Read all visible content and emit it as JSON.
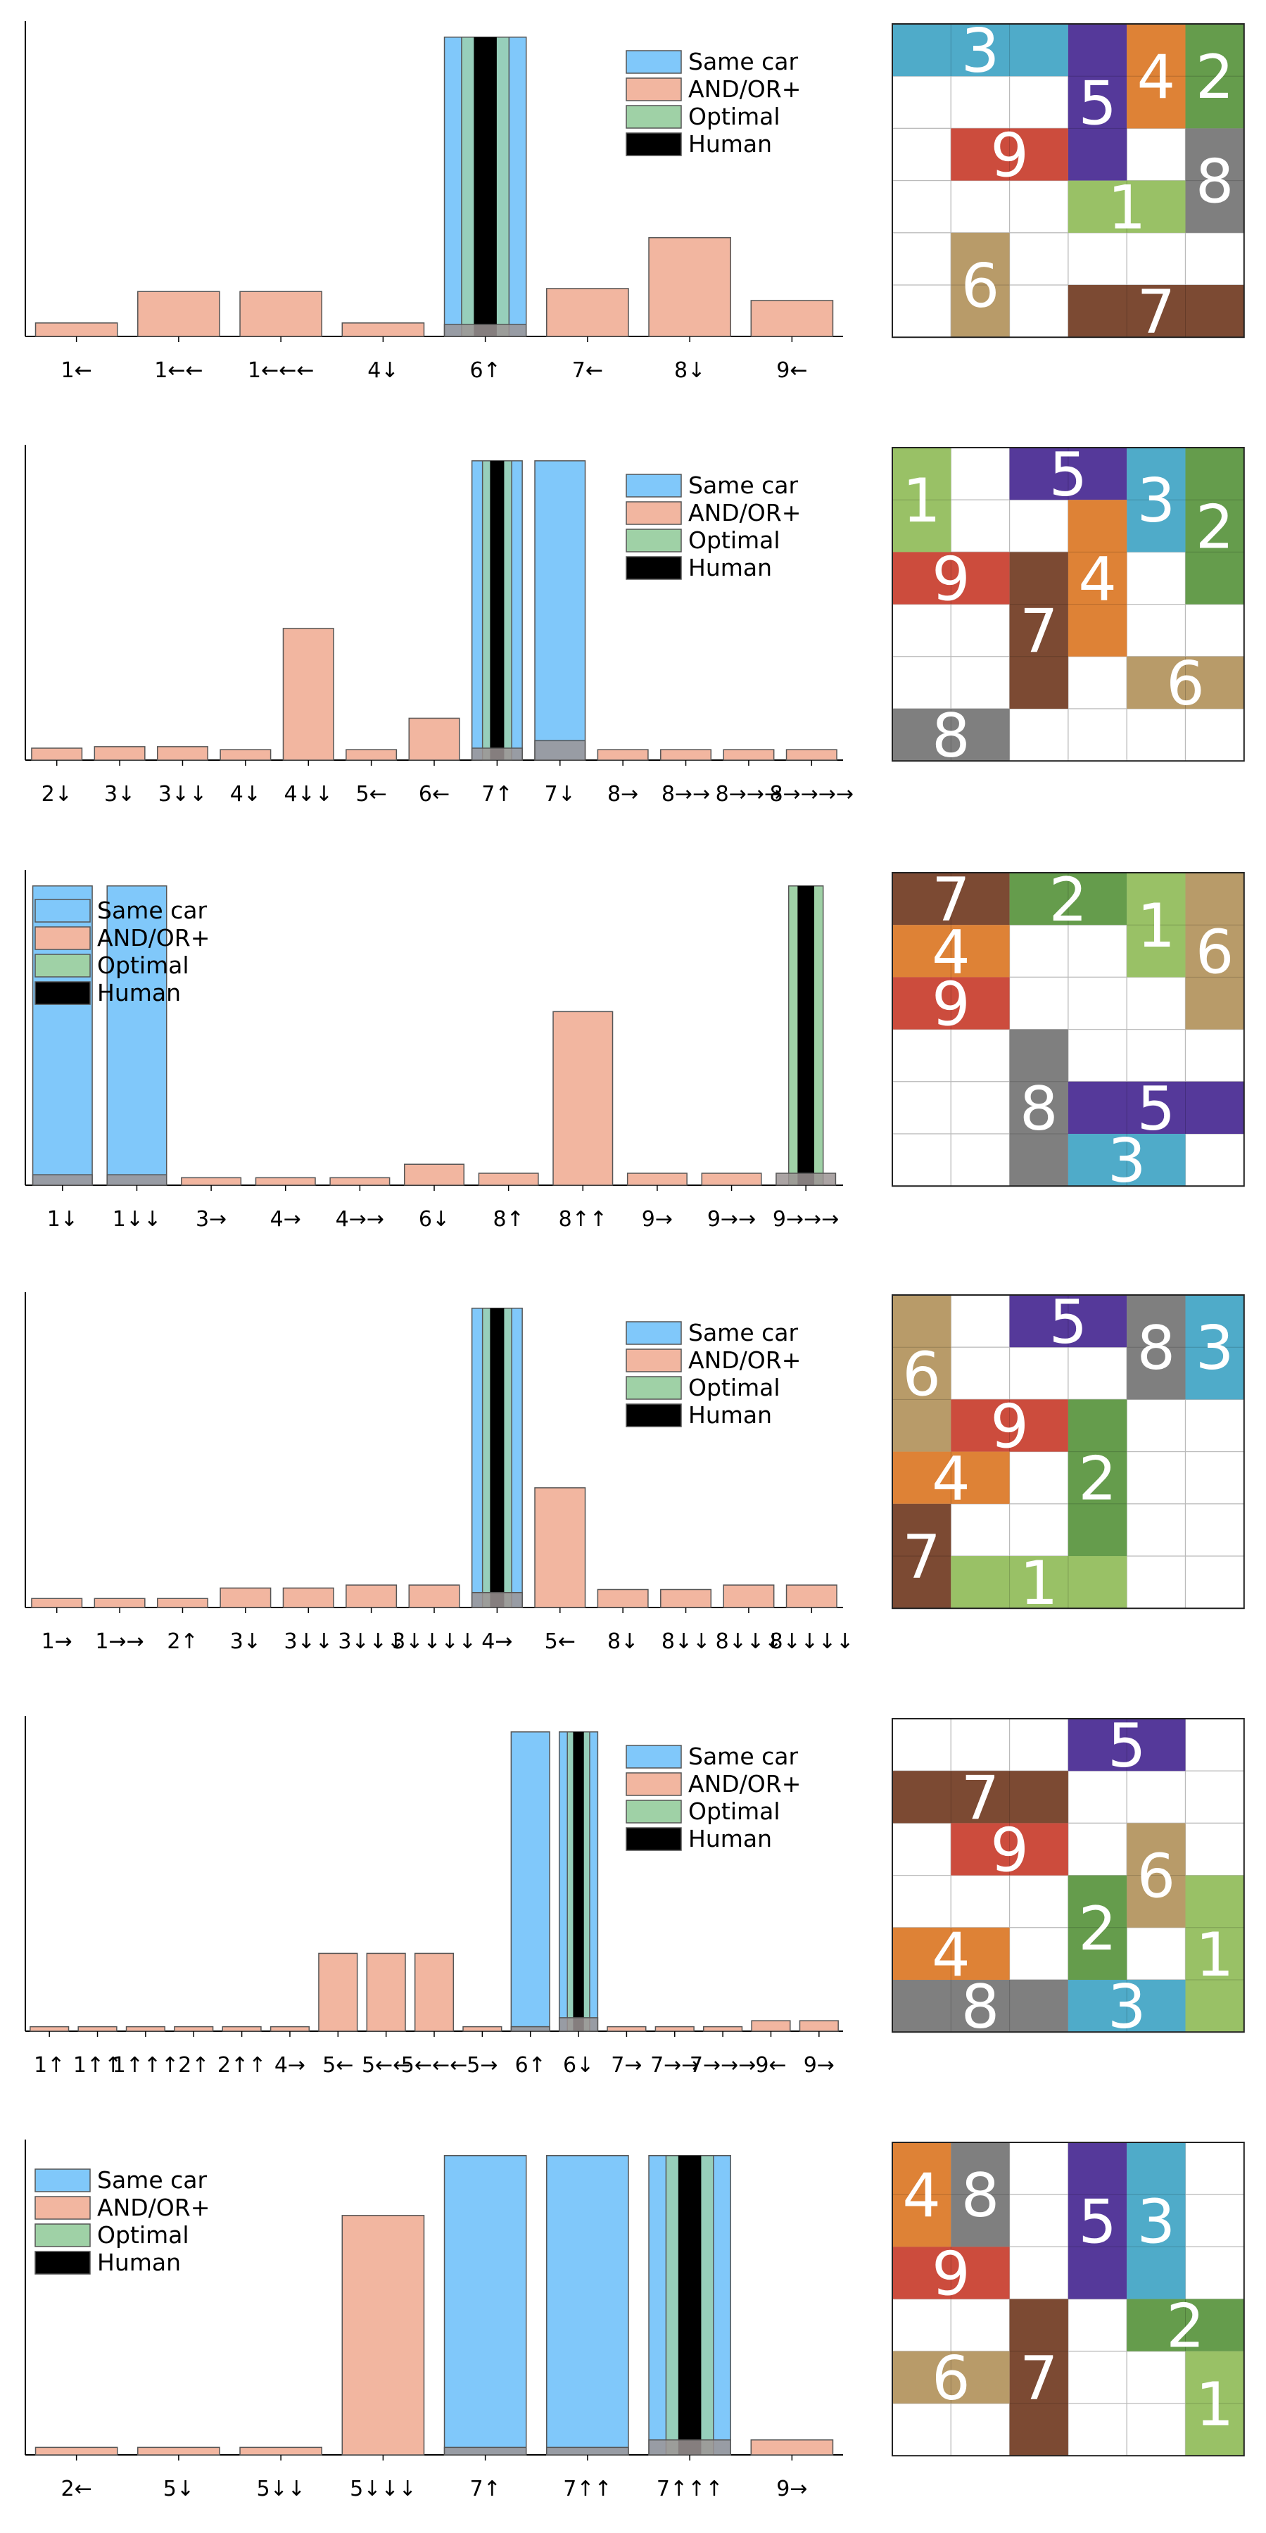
{
  "colors": {
    "same_car": "#80c8fa",
    "andor": "#f2b6a0",
    "optimal": "#9fd1a6",
    "human": "#000000",
    "overlap": "#9c9494",
    "grid_line": "#bbbbbb",
    "frame": "#222222"
  },
  "legend_labels": [
    "Same car",
    "AND/OR+",
    "Optimal",
    "Human"
  ],
  "chart_data": [
    {
      "type": "bar",
      "legend_position": "upper-right",
      "categories": [
        "1←",
        "1←←",
        "1←←←",
        "4↓",
        "6↑",
        "7←",
        "8↓",
        "9←"
      ],
      "series": [
        {
          "name": "Same car",
          "values": [
            0,
            0,
            0,
            0,
            1.0,
            0,
            0,
            0
          ]
        },
        {
          "name": "AND/OR+",
          "values": [
            0.045,
            0.15,
            0.15,
            0.045,
            0.04,
            0.16,
            0.33,
            0.12
          ]
        },
        {
          "name": "Optimal",
          "values": [
            0,
            0,
            0,
            0,
            1.0,
            0,
            0,
            0
          ]
        },
        {
          "name": "Human",
          "values": [
            0,
            0,
            0,
            0,
            1.0,
            0,
            0,
            0
          ]
        }
      ],
      "ylim": [
        0,
        1.03
      ],
      "puzzle": {
        "cars": [
          {
            "label": "3",
            "color": "#4fabc9",
            "row": 0,
            "col": 0,
            "w": 3,
            "h": 1
          },
          {
            "label": "5",
            "color": "#55399a",
            "row": 0,
            "col": 3,
            "w": 1,
            "h": 3
          },
          {
            "label": "4",
            "color": "#de8236",
            "row": 0,
            "col": 4,
            "w": 1,
            "h": 2
          },
          {
            "label": "2",
            "color": "#659c4c",
            "row": 0,
            "col": 5,
            "w": 1,
            "h": 2
          },
          {
            "label": "9",
            "color": "#cc4c3d",
            "row": 2,
            "col": 1,
            "w": 2,
            "h": 1
          },
          {
            "label": "8",
            "color": "#7f7f7f",
            "row": 2,
            "col": 5,
            "w": 1,
            "h": 2
          },
          {
            "label": "1",
            "color": "#99c166",
            "row": 3,
            "col": 3,
            "w": 2,
            "h": 1
          },
          {
            "label": "6",
            "color": "#b89b69",
            "row": 4,
            "col": 1,
            "w": 1,
            "h": 2
          },
          {
            "label": "7",
            "color": "#7c4a33",
            "row": 5,
            "col": 3,
            "w": 3,
            "h": 1
          }
        ]
      }
    },
    {
      "type": "bar",
      "legend_position": "upper-right",
      "categories": [
        "2↓",
        "3↓",
        "3↓↓",
        "4↓",
        "4↓↓",
        "5←",
        "6←",
        "7↑",
        "7↓",
        "8→",
        "8→→",
        "8→→→",
        "8→→→→"
      ],
      "series": [
        {
          "name": "Same car",
          "values": [
            0,
            0,
            0,
            0,
            0,
            0,
            0,
            1.0,
            1.0,
            0,
            0,
            0,
            0
          ]
        },
        {
          "name": "AND/OR+",
          "values": [
            0.04,
            0.045,
            0.045,
            0.035,
            0.44,
            0.035,
            0.14,
            0.04,
            0.065,
            0.035,
            0.035,
            0.035,
            0.035
          ]
        },
        {
          "name": "Optimal",
          "values": [
            0,
            0,
            0,
            0,
            0,
            0,
            0,
            1.0,
            0,
            0,
            0,
            0,
            0
          ]
        },
        {
          "name": "Human",
          "values": [
            0,
            0,
            0,
            0,
            0,
            0,
            0,
            1.0,
            0,
            0,
            0,
            0,
            0
          ]
        }
      ],
      "ylim": [
        0,
        1.03
      ],
      "puzzle": {
        "cars": [
          {
            "label": "1",
            "color": "#99c166",
            "row": 0,
            "col": 0,
            "w": 1,
            "h": 2
          },
          {
            "label": "5",
            "color": "#55399a",
            "row": 0,
            "col": 2,
            "w": 2,
            "h": 1
          },
          {
            "label": "3",
            "color": "#4fabc9",
            "row": 0,
            "col": 4,
            "w": 1,
            "h": 2
          },
          {
            "label": "2",
            "color": "#659c4c",
            "row": 0,
            "col": 5,
            "w": 1,
            "h": 3
          },
          {
            "label": "4",
            "color": "#de8236",
            "row": 1,
            "col": 3,
            "w": 1,
            "h": 3
          },
          {
            "label": "9",
            "color": "#cc4c3d",
            "row": 2,
            "col": 0,
            "w": 2,
            "h": 1
          },
          {
            "label": "7",
            "color": "#7c4a33",
            "row": 2,
            "col": 2,
            "w": 1,
            "h": 3
          },
          {
            "label": "6",
            "color": "#b89b69",
            "row": 4,
            "col": 4,
            "w": 2,
            "h": 1
          },
          {
            "label": "8",
            "color": "#7f7f7f",
            "row": 5,
            "col": 0,
            "w": 2,
            "h": 1
          }
        ]
      }
    },
    {
      "type": "bar",
      "legend_position": "upper-left",
      "categories": [
        "1↓",
        "1↓↓",
        "3→",
        "4→",
        "4→→",
        "6↓",
        "8↑",
        "8↑↑",
        "9→",
        "9→→",
        "9→→→"
      ],
      "series": [
        {
          "name": "Same car",
          "values": [
            1.0,
            1.0,
            0,
            0,
            0,
            0,
            0,
            0,
            0,
            0,
            0
          ]
        },
        {
          "name": "AND/OR+",
          "values": [
            0.035,
            0.035,
            0.025,
            0.025,
            0.025,
            0.07,
            0.04,
            0.58,
            0.04,
            0.04,
            0.04
          ]
        },
        {
          "name": "Optimal",
          "values": [
            0,
            0,
            0,
            0,
            0,
            0,
            0,
            0,
            0,
            0,
            1.0
          ]
        },
        {
          "name": "Human",
          "values": [
            0,
            0,
            0,
            0,
            0,
            0,
            0,
            0,
            0,
            0,
            1.0
          ]
        }
      ],
      "ylim": [
        0,
        1.03
      ],
      "puzzle": {
        "cars": [
          {
            "label": "7",
            "color": "#7c4a33",
            "row": 0,
            "col": 0,
            "w": 2,
            "h": 1
          },
          {
            "label": "2",
            "color": "#659c4c",
            "row": 0,
            "col": 2,
            "w": 2,
            "h": 1
          },
          {
            "label": "1",
            "color": "#99c166",
            "row": 0,
            "col": 4,
            "w": 1,
            "h": 2
          },
          {
            "label": "6",
            "color": "#b89b69",
            "row": 0,
            "col": 5,
            "w": 1,
            "h": 3
          },
          {
            "label": "4",
            "color": "#de8236",
            "row": 1,
            "col": 0,
            "w": 2,
            "h": 1
          },
          {
            "label": "9",
            "color": "#cc4c3d",
            "row": 2,
            "col": 0,
            "w": 2,
            "h": 1
          },
          {
            "label": "8",
            "color": "#7f7f7f",
            "row": 3,
            "col": 2,
            "w": 1,
            "h": 3
          },
          {
            "label": "5",
            "color": "#55399a",
            "row": 4,
            "col": 3,
            "w": 3,
            "h": 1
          },
          {
            "label": "3",
            "color": "#4fabc9",
            "row": 5,
            "col": 3,
            "w": 2,
            "h": 1
          }
        ]
      }
    },
    {
      "type": "bar",
      "legend_position": "upper-right",
      "categories": [
        "1→",
        "1→→",
        "2↑",
        "3↓",
        "3↓↓",
        "3↓↓↓",
        "3↓↓↓↓",
        "4→",
        "5←",
        "8↓",
        "8↓↓",
        "8↓↓↓",
        "8↓↓↓↓"
      ],
      "series": [
        {
          "name": "Same car",
          "values": [
            0,
            0,
            0,
            0,
            0,
            0,
            0,
            1.0,
            0,
            0,
            0,
            0,
            0
          ]
        },
        {
          "name": "AND/OR+",
          "values": [
            0.03,
            0.03,
            0.03,
            0.065,
            0.065,
            0.075,
            0.075,
            0.05,
            0.4,
            0.06,
            0.06,
            0.075,
            0.075
          ]
        },
        {
          "name": "Optimal",
          "values": [
            0,
            0,
            0,
            0,
            0,
            0,
            0,
            1.0,
            0,
            0,
            0,
            0,
            0
          ]
        },
        {
          "name": "Human",
          "values": [
            0,
            0,
            0,
            0,
            0,
            0,
            0,
            1.0,
            0,
            0,
            0,
            0,
            0
          ]
        }
      ],
      "ylim": [
        0,
        1.03
      ],
      "puzzle": {
        "cars": [
          {
            "label": "6",
            "color": "#b89b69",
            "row": 0,
            "col": 0,
            "w": 1,
            "h": 3
          },
          {
            "label": "5",
            "color": "#55399a",
            "row": 0,
            "col": 2,
            "w": 2,
            "h": 1
          },
          {
            "label": "8",
            "color": "#7f7f7f",
            "row": 0,
            "col": 4,
            "w": 1,
            "h": 2
          },
          {
            "label": "3",
            "color": "#4fabc9",
            "row": 0,
            "col": 5,
            "w": 1,
            "h": 2
          },
          {
            "label": "9",
            "color": "#cc4c3d",
            "row": 2,
            "col": 1,
            "w": 2,
            "h": 1
          },
          {
            "label": "2",
            "color": "#659c4c",
            "row": 2,
            "col": 3,
            "w": 1,
            "h": 3
          },
          {
            "label": "4",
            "color": "#de8236",
            "row": 3,
            "col": 0,
            "w": 2,
            "h": 1
          },
          {
            "label": "7",
            "color": "#7c4a33",
            "row": 4,
            "col": 0,
            "w": 1,
            "h": 2
          },
          {
            "label": "1",
            "color": "#99c166",
            "row": 5,
            "col": 1,
            "w": 3,
            "h": 1
          }
        ]
      }
    },
    {
      "type": "bar",
      "legend_position": "upper-right",
      "categories": [
        "1↑",
        "1↑↑",
        "1↑↑↑",
        "2↑",
        "2↑↑",
        "4→",
        "5←",
        "5←←",
        "5←←←",
        "5→",
        "6↑",
        "6↓",
        "7→",
        "7→→",
        "7→→→",
        "9←",
        "9→"
      ],
      "series": [
        {
          "name": "Same car",
          "values": [
            0,
            0,
            0,
            0,
            0,
            0,
            0,
            0,
            0,
            0,
            1.0,
            1.0,
            0,
            0,
            0,
            0,
            0
          ]
        },
        {
          "name": "AND/OR+",
          "values": [
            0.015,
            0.015,
            0.015,
            0.015,
            0.015,
            0.015,
            0.26,
            0.26,
            0.26,
            0.015,
            0.015,
            0.045,
            0.015,
            0.015,
            0.015,
            0.035,
            0.035
          ]
        },
        {
          "name": "Optimal",
          "values": [
            0,
            0,
            0,
            0,
            0,
            0,
            0,
            0,
            0,
            0,
            0,
            1.0,
            0,
            0,
            0,
            0,
            0
          ]
        },
        {
          "name": "Human",
          "values": [
            0,
            0,
            0,
            0,
            0,
            0,
            0,
            0,
            0,
            0,
            0,
            1.0,
            0,
            0,
            0,
            0,
            0
          ]
        }
      ],
      "ylim": [
        0,
        1.03
      ],
      "puzzle": {
        "cars": [
          {
            "label": "5",
            "color": "#55399a",
            "row": 0,
            "col": 3,
            "w": 2,
            "h": 1
          },
          {
            "label": "7",
            "color": "#7c4a33",
            "row": 1,
            "col": 0,
            "w": 3,
            "h": 1
          },
          {
            "label": "9",
            "color": "#cc4c3d",
            "row": 2,
            "col": 1,
            "w": 2,
            "h": 1
          },
          {
            "label": "6",
            "color": "#b89b69",
            "row": 2,
            "col": 4,
            "w": 1,
            "h": 2
          },
          {
            "label": "2",
            "color": "#659c4c",
            "row": 3,
            "col": 3,
            "w": 1,
            "h": 2
          },
          {
            "label": "1",
            "color": "#99c166",
            "row": 3,
            "col": 5,
            "w": 1,
            "h": 3
          },
          {
            "label": "4",
            "color": "#de8236",
            "row": 4,
            "col": 0,
            "w": 2,
            "h": 1
          },
          {
            "label": "8",
            "color": "#7f7f7f",
            "row": 5,
            "col": 0,
            "w": 3,
            "h": 1
          },
          {
            "label": "3",
            "color": "#4fabc9",
            "row": 5,
            "col": 3,
            "w": 2,
            "h": 1
          }
        ]
      }
    },
    {
      "type": "bar",
      "legend_position": "upper-left",
      "categories": [
        "2←",
        "5↓",
        "5↓↓",
        "5↓↓↓",
        "7↑",
        "7↑↑",
        "7↑↑↑",
        "9→"
      ],
      "series": [
        {
          "name": "Same car",
          "values": [
            0,
            0,
            0,
            0,
            1.0,
            1.0,
            1.0,
            0
          ]
        },
        {
          "name": "AND/OR+",
          "values": [
            0.025,
            0.025,
            0.025,
            0.8,
            0.025,
            0.025,
            0.05,
            0.05
          ]
        },
        {
          "name": "Optimal",
          "values": [
            0,
            0,
            0,
            0,
            0,
            0,
            1.0,
            0
          ]
        },
        {
          "name": "Human",
          "values": [
            0,
            0,
            0,
            0,
            0,
            0,
            1.0,
            0
          ]
        }
      ],
      "ylim": [
        0,
        1.03
      ],
      "puzzle": {
        "cars": [
          {
            "label": "4",
            "color": "#de8236",
            "row": 0,
            "col": 0,
            "w": 1,
            "h": 2
          },
          {
            "label": "8",
            "color": "#7f7f7f",
            "row": 0,
            "col": 1,
            "w": 1,
            "h": 2
          },
          {
            "label": "5",
            "color": "#55399a",
            "row": 0,
            "col": 3,
            "w": 1,
            "h": 3
          },
          {
            "label": "3",
            "color": "#4fabc9",
            "row": 0,
            "col": 4,
            "w": 1,
            "h": 3
          },
          {
            "label": "9",
            "color": "#cc4c3d",
            "row": 2,
            "col": 0,
            "w": 2,
            "h": 1
          },
          {
            "label": "7",
            "color": "#7c4a33",
            "row": 3,
            "col": 2,
            "w": 1,
            "h": 3
          },
          {
            "label": "2",
            "color": "#659c4c",
            "row": 3,
            "col": 4,
            "w": 2,
            "h": 1
          },
          {
            "label": "6",
            "color": "#b89b69",
            "row": 4,
            "col": 0,
            "w": 2,
            "h": 1
          },
          {
            "label": "1",
            "color": "#99c166",
            "row": 4,
            "col": 5,
            "w": 1,
            "h": 2
          }
        ]
      }
    }
  ]
}
